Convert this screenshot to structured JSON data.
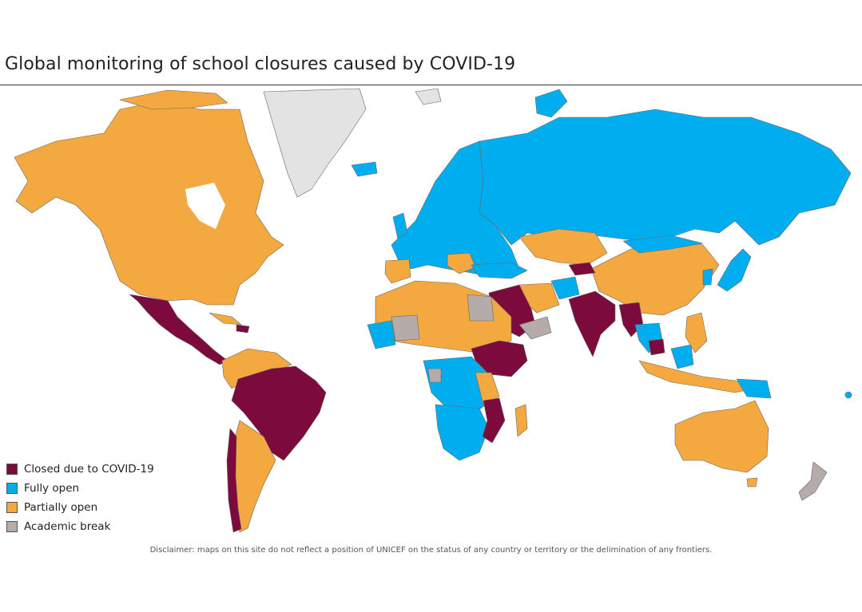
{
  "title": "Global monitoring of school closures caused by COVID-19",
  "legend": [
    {
      "label": "Closed due to COVID-19",
      "color": "#7d0a3c"
    },
    {
      "label": "Fully open",
      "color": "#00aeef"
    },
    {
      "label": "Partially open",
      "color": "#f4a940"
    },
    {
      "label": "Academic break",
      "color": "#b5aba8"
    }
  ],
  "no_data_color": "#e3e3e3",
  "disclaimer": "Disclaimer: maps on this site do not reflect a position of UNICEF on the status of any country or territory or the delimination of any frontiers."
}
